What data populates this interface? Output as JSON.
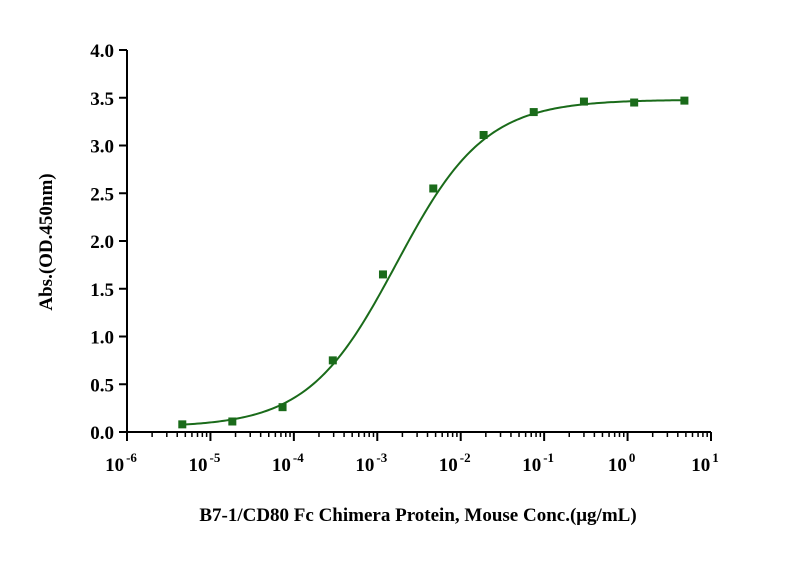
{
  "chart_data": {
    "type": "scatter",
    "title": "",
    "xlabel": "B7-1/CD80 Fc Chimera Protein, Mouse Conc.(μg/mL)",
    "ylabel": "Abs.(OD.450nm)",
    "x_scale": "log",
    "xlim": [
      1e-06,
      10
    ],
    "ylim": [
      0,
      4.0
    ],
    "x_ticks": [
      {
        "base": "10",
        "exp": "-6"
      },
      {
        "base": "10",
        "exp": "-5"
      },
      {
        "base": "10",
        "exp": "-4"
      },
      {
        "base": "10",
        "exp": "-3"
      },
      {
        "base": "10",
        "exp": "-2"
      },
      {
        "base": "10",
        "exp": "-1"
      },
      {
        "base": "10",
        "exp": "0"
      },
      {
        "base": "10",
        "exp": "1"
      }
    ],
    "y_ticks": [
      "0.0",
      "0.5",
      "1.0",
      "1.5",
      "2.0",
      "2.5",
      "3.0",
      "3.5",
      "4.0"
    ],
    "grid": false,
    "legend": "none",
    "color": "#1a6b1a",
    "series": [
      {
        "x": [
          4.6e-06,
          1.83e-05,
          7.32e-05,
          0.000293,
          0.00117,
          0.00469,
          0.0188,
          0.075,
          0.3,
          1.2,
          4.8
        ],
        "y": [
          0.08,
          0.11,
          0.26,
          0.75,
          1.65,
          2.55,
          3.11,
          3.35,
          3.46,
          3.45,
          3.47
        ]
      }
    ],
    "fit_curve": {
      "type": "4PL",
      "bottom": 0.05,
      "top": 3.48,
      "ec50": 0.0017,
      "hill": 0.82
    }
  }
}
